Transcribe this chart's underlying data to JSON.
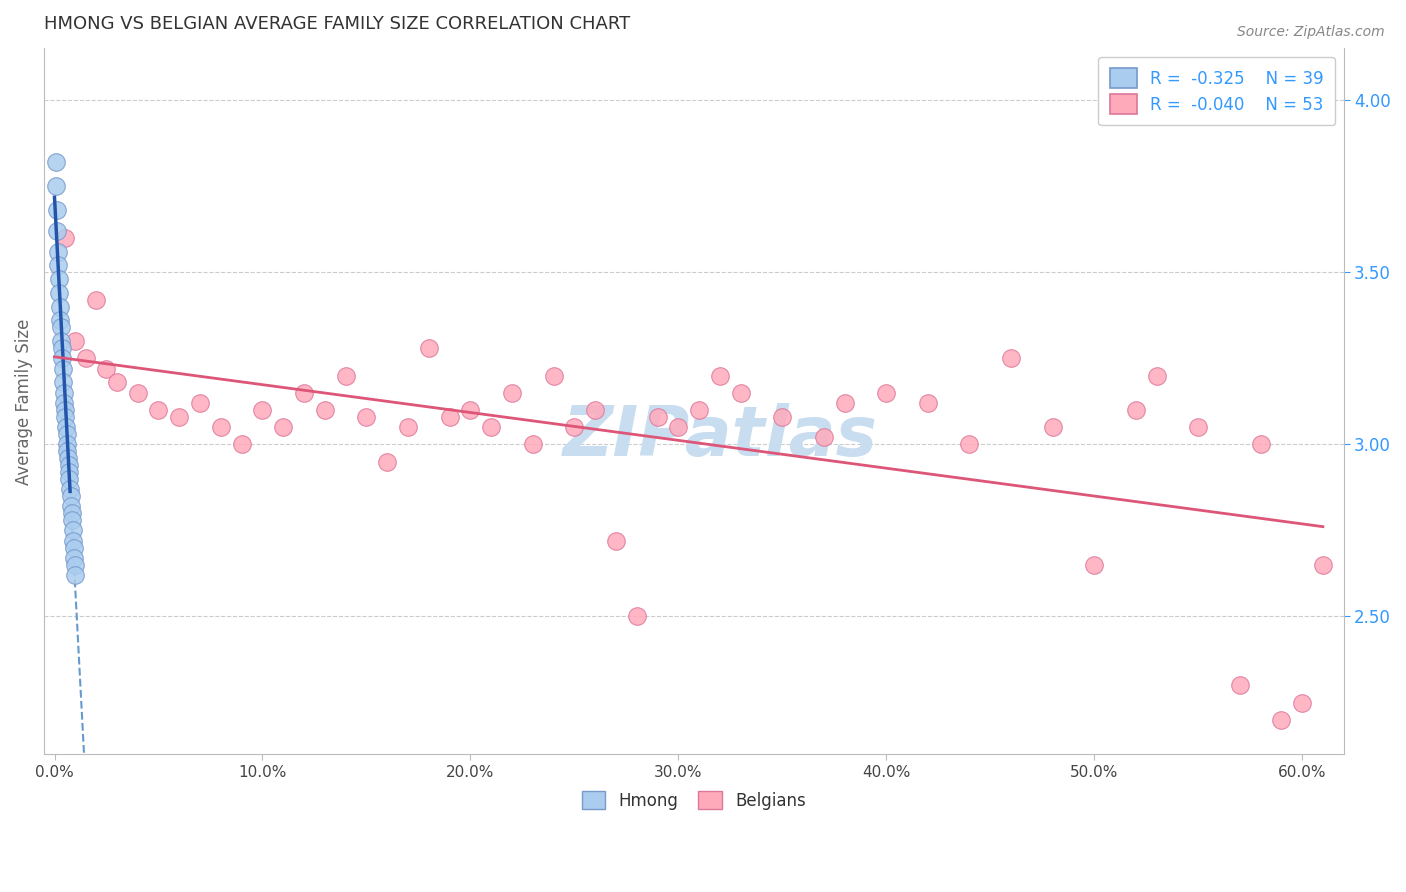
{
  "title": "HMONG VS BELGIAN AVERAGE FAMILY SIZE CORRELATION CHART",
  "source_text": "Source: ZipAtlas.com",
  "ylabel": "Average Family Size",
  "xlabel_ticks": [
    "0.0%",
    "10.0%",
    "20.0%",
    "30.0%",
    "40.0%",
    "50.0%",
    "60.0%"
  ],
  "xlabel_vals": [
    0.0,
    10.0,
    20.0,
    30.0,
    40.0,
    50.0,
    60.0
  ],
  "ylim": [
    2.1,
    4.15
  ],
  "xlim": [
    -0.5,
    62.0
  ],
  "right_yticks": [
    2.5,
    3.0,
    3.5,
    4.0
  ],
  "legend_r_hmong": "-0.325",
  "legend_n_hmong": "39",
  "legend_r_belgian": "-0.040",
  "legend_n_belgian": "53",
  "hmong_color": "#aaccee",
  "hmong_edge": "#7799cc",
  "belgian_color": "#ffaabb",
  "belgian_edge": "#dd7799",
  "trend_hmong_solid_color": "#2255aa",
  "trend_hmong_dash_color": "#6699cc",
  "trend_belgian_color": "#dd5577",
  "title_color": "#333333",
  "axis_label_color": "#666666",
  "right_tick_color": "#3399ff",
  "watermark_color": "#c8ddf0",
  "background_color": "#ffffff",
  "grid_color": "#cccccc",
  "hmong_x": [
    0.05,
    0.08,
    0.1,
    0.12,
    0.15,
    0.18,
    0.2,
    0.22,
    0.25,
    0.28,
    0.3,
    0.32,
    0.35,
    0.38,
    0.4,
    0.42,
    0.45,
    0.48,
    0.5,
    0.52,
    0.55,
    0.58,
    0.6,
    0.62,
    0.65,
    0.68,
    0.7,
    0.72,
    0.75,
    0.78,
    0.8,
    0.82,
    0.85,
    0.88,
    0.9,
    0.92,
    0.95,
    0.98,
    1.0
  ],
  "hmong_y": [
    3.82,
    3.75,
    3.68,
    3.62,
    3.56,
    3.52,
    3.48,
    3.44,
    3.4,
    3.36,
    3.34,
    3.3,
    3.28,
    3.25,
    3.22,
    3.18,
    3.15,
    3.12,
    3.1,
    3.08,
    3.05,
    3.03,
    3.0,
    2.98,
    2.96,
    2.94,
    2.92,
    2.9,
    2.87,
    2.85,
    2.82,
    2.8,
    2.78,
    2.75,
    2.72,
    2.7,
    2.67,
    2.65,
    2.62
  ],
  "belgian_x": [
    0.5,
    1.0,
    1.5,
    2.0,
    2.5,
    3.0,
    4.0,
    5.0,
    6.0,
    7.0,
    8.0,
    9.0,
    10.0,
    11.0,
    12.0,
    13.0,
    15.0,
    16.0,
    17.0,
    18.0,
    19.0,
    20.0,
    21.0,
    22.0,
    23.0,
    24.0,
    25.0,
    26.0,
    27.0,
    28.0,
    30.0,
    32.0,
    33.0,
    35.0,
    37.0,
    38.0,
    40.0,
    42.0,
    44.0,
    46.0,
    48.0,
    50.0,
    52.0,
    53.0,
    55.0,
    57.0,
    58.0,
    59.0,
    60.0,
    61.0,
    14.0,
    29.0,
    31.0
  ],
  "belgian_y": [
    3.6,
    3.3,
    3.25,
    3.42,
    3.22,
    3.18,
    3.15,
    3.1,
    3.08,
    3.12,
    3.05,
    3.0,
    3.1,
    3.05,
    3.15,
    3.1,
    3.08,
    2.95,
    3.05,
    3.28,
    3.08,
    3.1,
    3.05,
    3.15,
    3.0,
    3.2,
    3.05,
    3.1,
    2.72,
    2.5,
    3.05,
    3.2,
    3.15,
    3.08,
    3.02,
    3.12,
    3.15,
    3.12,
    3.0,
    3.25,
    3.05,
    2.65,
    3.1,
    3.2,
    3.05,
    2.3,
    3.0,
    2.2,
    2.25,
    2.65,
    3.2,
    3.08,
    3.1
  ]
}
